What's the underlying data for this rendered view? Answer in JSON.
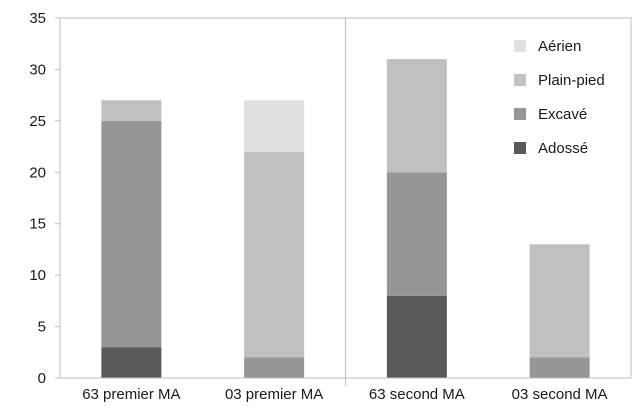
{
  "chart_data": {
    "type": "bar",
    "stacked": true,
    "categories": [
      "63 premier MA",
      "03 premier MA",
      "63 second MA",
      "03 second MA"
    ],
    "series": [
      {
        "name": "Adossé",
        "values": [
          3,
          0,
          8,
          0
        ],
        "color": "#595959"
      },
      {
        "name": "Excavé",
        "values": [
          22,
          2,
          12,
          2
        ],
        "color": "#969696"
      },
      {
        "name": "Plain-pied",
        "values": [
          2,
          20,
          11,
          11
        ],
        "color": "#c0c0c0"
      },
      {
        "name": "Aérien",
        "values": [
          0,
          5,
          0,
          0
        ],
        "color": "#e0e0e0"
      }
    ],
    "ylim": [
      0,
      35
    ],
    "yticks": [
      "0",
      "5",
      "10",
      "15",
      "20",
      "25",
      "30",
      "35"
    ],
    "ytick_values": [
      0,
      5,
      10,
      15,
      20,
      25,
      30,
      35
    ],
    "grid": false,
    "legend_position": "top-right",
    "legend_order": [
      "Aérien",
      "Plain-pied",
      "Excavé",
      "Adossé"
    ],
    "divider_after_category": "03 premier MA",
    "title": "",
    "xlabel": "",
    "ylabel": ""
  }
}
